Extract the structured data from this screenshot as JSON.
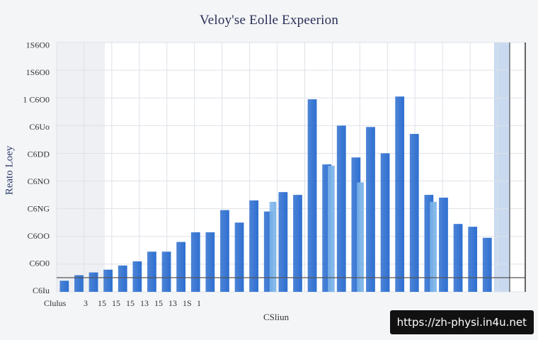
{
  "chart_data": {
    "type": "bar",
    "title": "Veloy'se Eolle Expeerion",
    "ylabel": "Reato Loey",
    "xlabel": "CSliun",
    "y_tick_labels": [
      "C6Iu",
      "C6O0",
      "C6OO",
      "C6NG",
      "C6NO",
      "C6DD",
      "C6Uo",
      "1 C6O0",
      "1S6O0",
      "1S6O0"
    ],
    "x_tick_labels": [
      "Clulus",
      "3",
      "15",
      "15",
      "15",
      "13",
      "15",
      "13",
      "1S",
      "1"
    ],
    "ylim": [
      0,
      9
    ],
    "grid": true,
    "series": [
      {
        "color": "#2e6fd0",
        "values": [
          0.4,
          0.6,
          0.7,
          0.8,
          0.95,
          1.1,
          1.45,
          1.45,
          1.8,
          2.15,
          2.15,
          2.95,
          2.5,
          3.3,
          2.9,
          3.6,
          3.5,
          6.95,
          4.6,
          6.0,
          4.85,
          5.95,
          5.0,
          7.05,
          5.7,
          3.5,
          3.4,
          2.45,
          2.35,
          1.95
        ]
      },
      {
        "color": "#7fb6ea",
        "values": [
          0,
          0,
          0,
          0,
          0,
          0,
          0,
          0,
          0,
          0,
          0,
          0,
          0,
          0,
          3.25,
          0,
          0,
          0,
          4.55,
          0,
          3.95,
          0,
          0,
          0,
          0,
          3.25,
          0,
          0,
          0,
          0
        ]
      }
    ]
  },
  "watermark": "https://zh-physi.in4u.net"
}
